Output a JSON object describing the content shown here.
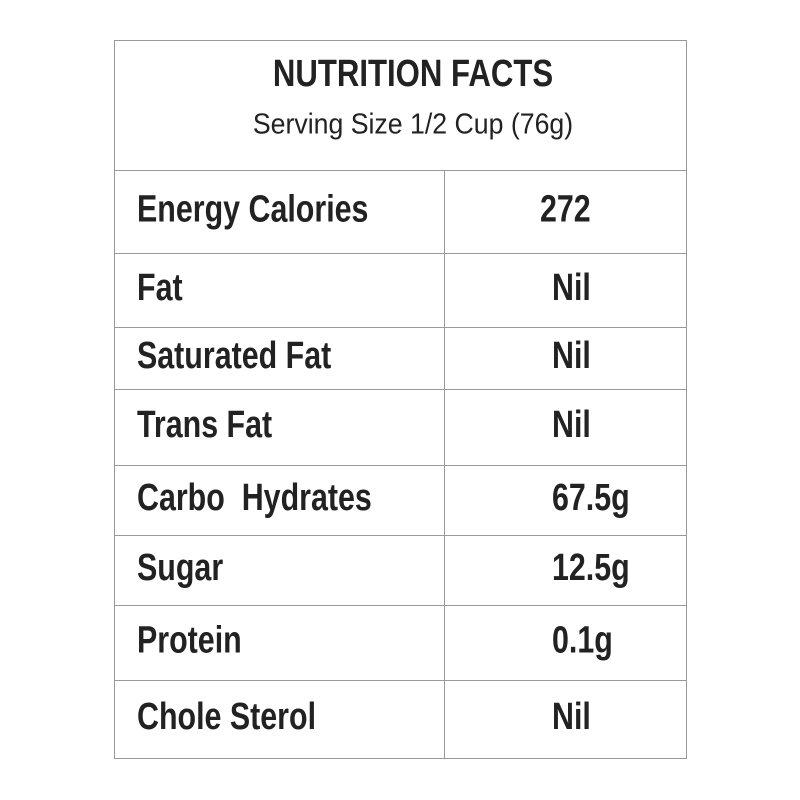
{
  "header": {
    "title": "NUTRITION FACTS",
    "subtitle": "Serving Size 1/2 Cup (76g)"
  },
  "table": {
    "rows": [
      [
        "Energy Calories",
        "272"
      ],
      [
        "Fat",
        "Nil"
      ],
      [
        "Saturated Fat",
        "Nil"
      ],
      [
        "Trans Fat",
        "Nil"
      ],
      [
        "Carbo  Hydrates",
        "67.5g"
      ],
      [
        "Sugar",
        "12.5g"
      ],
      [
        "Protein",
        "0.1g"
      ],
      [
        "Chole Sterol",
        "Nil"
      ]
    ]
  }
}
